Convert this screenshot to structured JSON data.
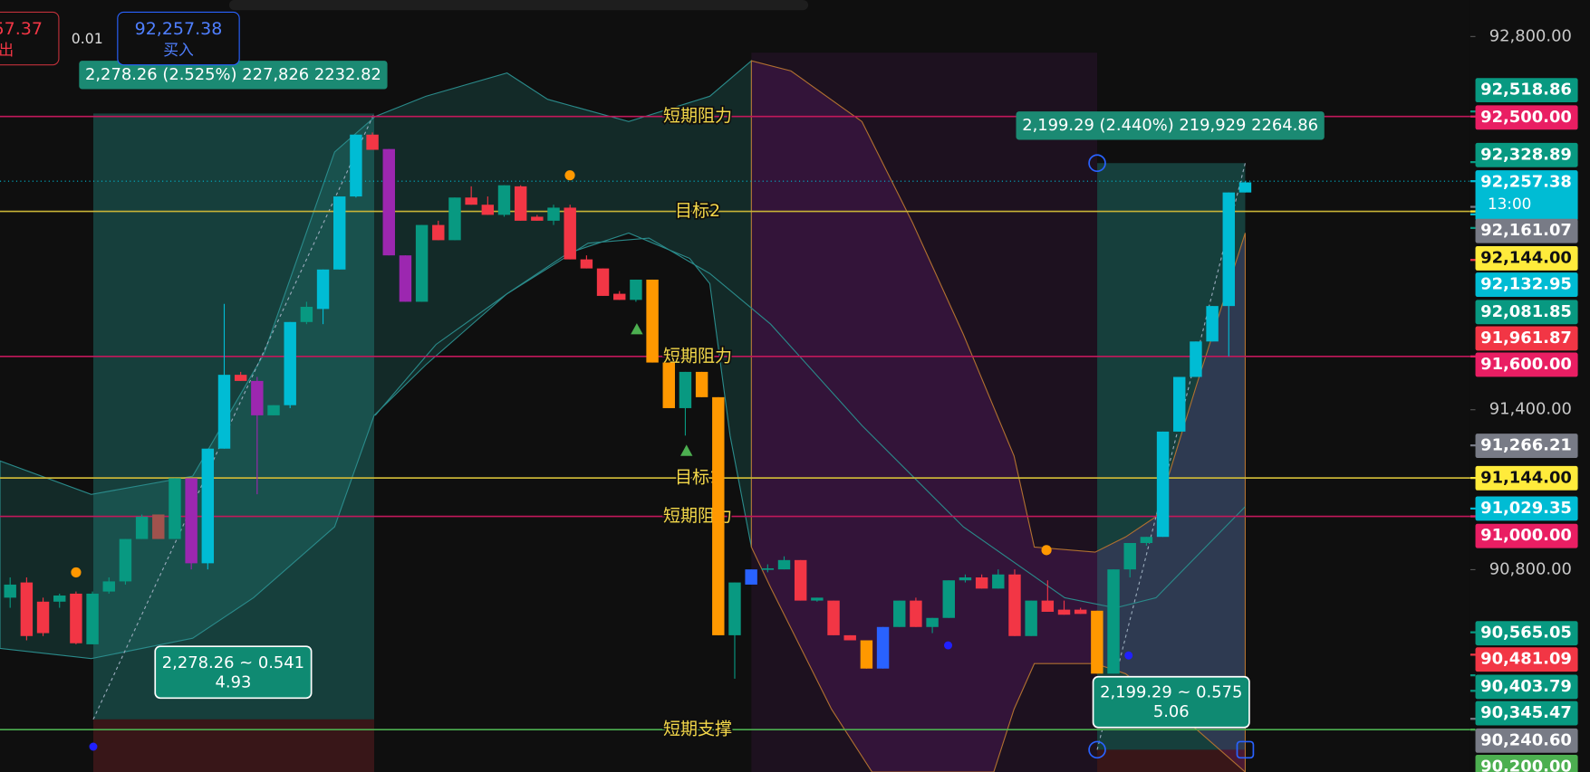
{
  "order_panel": {
    "sell_price": "57.37",
    "sell_label": "出",
    "spread": "0.01",
    "buy_price": "92,257.38",
    "buy_label": "买入"
  },
  "price_scale": {
    "ylim": [
      90041,
      92937
    ],
    "ticks": [
      {
        "value": 92800,
        "label": "92,800.00"
      },
      {
        "value": 91400,
        "label": "91,400.00"
      },
      {
        "value": 90800,
        "label": "90,800.00"
      }
    ]
  },
  "levels": [
    {
      "label": "短期阻力",
      "price": 92500,
      "color": "#c2185b"
    },
    {
      "label": "目标2",
      "price": 92144,
      "color": "#c9b437"
    },
    {
      "label": "短期阻力",
      "price": 91600,
      "color": "#c2185b"
    },
    {
      "label": "目标1",
      "price": 91144,
      "color": "#c9b437"
    },
    {
      "label": "短期阻力",
      "price": 91000,
      "color": "#c2185b"
    },
    {
      "label": "短期支撑",
      "price": 90200,
      "color": "#4caf50"
    }
  ],
  "badges": [
    {
      "value": 92518.86,
      "label": "92,518.86",
      "color": "#089981"
    },
    {
      "value": 92500,
      "label": "92,500.00",
      "color": "#e91e63"
    },
    {
      "value": 92328.89,
      "label": "92,328.89",
      "color": "#089981"
    },
    {
      "value": 92257.38,
      "label": "92,257.38",
      "color": "#00bcd4",
      "sub": "13:00"
    },
    {
      "value": 92161.07,
      "label": "92,161.07",
      "color": "#787b86"
    },
    {
      "value": 92144,
      "label": "92,144.00",
      "color": "#ffeb3b"
    },
    {
      "value": 92132.95,
      "label": "92,132.95",
      "color": "#00bcd4"
    },
    {
      "value": 92081.85,
      "label": "92,081.85",
      "color": "#089981"
    },
    {
      "value": 91961.87,
      "label": "91,961.87",
      "color": "#f23645"
    },
    {
      "value": 91600,
      "label": "91,600.00",
      "color": "#e91e63"
    },
    {
      "value": 91266.21,
      "label": "91,266.21",
      "color": "#787b86"
    },
    {
      "value": 91144,
      "label": "91,144.00",
      "color": "#ffeb3b"
    },
    {
      "value": 91029.35,
      "label": "91,029.35",
      "color": "#00bcd4"
    },
    {
      "value": 91000,
      "label": "91,000.00",
      "color": "#e91e63"
    },
    {
      "value": 90565.05,
      "label": "90,565.05",
      "color": "#089981"
    },
    {
      "value": 90481.09,
      "label": "90,481.09",
      "color": "#f23645"
    },
    {
      "value": 90403.79,
      "label": "90,403.79",
      "color": "#089981"
    },
    {
      "value": 90345.47,
      "label": "90,345.47",
      "color": "#089981"
    },
    {
      "value": 90240.6,
      "label": "90,240.60",
      "color": "#787b86"
    },
    {
      "value": 90200,
      "label": "90,200.00",
      "color": "#4caf50"
    }
  ],
  "measures": [
    {
      "header": "2,278.26 (2.525%) 227,826 2232.82",
      "line1": "2,278.26 ~ 0.541",
      "line2": "4.93"
    },
    {
      "header": "2,199.29 (2.440%) 219,929 2264.86",
      "line1": "2,199.29 ~ 0.575",
      "line2": "5.06"
    }
  ],
  "candles": [
    [
      90695,
      90771,
      90657,
      90744
    ],
    [
      90752,
      90771,
      90535,
      90551
    ],
    [
      90680,
      90695,
      90551,
      90562
    ],
    [
      90680,
      90710,
      90657,
      90703
    ],
    [
      90710,
      90718,
      90520,
      90524
    ],
    [
      90520,
      90718,
      90520,
      90710
    ],
    [
      90718,
      90771,
      90710,
      90756
    ],
    [
      90756,
      90915,
      90744,
      90915
    ],
    [
      90915,
      91007,
      90915,
      90999
    ],
    [
      91007,
      91007,
      90915,
      90915
    ],
    [
      90915,
      91143,
      90915,
      91143
    ],
    [
      90824,
      91143,
      90801,
      91143
    ],
    [
      90824,
      91254,
      90801,
      91254
    ],
    [
      91254,
      91797,
      91254,
      91531
    ],
    [
      91531,
      91542,
      91508,
      91508
    ],
    [
      91508,
      91523,
      91083,
      91379
    ],
    [
      91379,
      91417,
      91379,
      91417
    ],
    [
      91417,
      91729,
      91406,
      91729
    ],
    [
      91729,
      91805,
      91721,
      91786
    ],
    [
      91778,
      91926,
      91721,
      91926
    ],
    [
      91926,
      92200,
      91926,
      92200
    ],
    [
      92200,
      92432,
      92196,
      92432
    ],
    [
      92432,
      92440,
      92375,
      92375
    ],
    [
      92378,
      92378,
      91979,
      91979
    ],
    [
      91979,
      91979,
      91805,
      91805
    ],
    [
      91805,
      92093,
      91805,
      92093
    ],
    [
      92093,
      92109,
      92036,
      92036
    ],
    [
      92036,
      92196,
      92036,
      92196
    ],
    [
      92196,
      92238,
      92169,
      92169
    ],
    [
      92169,
      92200,
      92131,
      92131
    ],
    [
      92131,
      92242,
      92124,
      92242
    ],
    [
      92238,
      92242,
      92109,
      92109
    ],
    [
      92124,
      92131,
      92109,
      92109
    ],
    [
      92109,
      92169,
      92093,
      92158
    ],
    [
      92158,
      92169,
      91964,
      91964
    ],
    [
      91964,
      91979,
      91930,
      91930
    ],
    [
      91930,
      91930,
      91827,
      91827
    ],
    [
      91835,
      91845,
      91812,
      91812
    ],
    [
      91812,
      91888,
      91805,
      91888
    ],
    [
      91888,
      91888,
      91577,
      91577
    ],
    [
      91577,
      91577,
      91406,
      91406
    ],
    [
      91406,
      91542,
      91303,
      91542
    ],
    [
      91542,
      91542,
      91447,
      91447
    ],
    [
      91447,
      91447,
      90554,
      90554
    ],
    [
      90554,
      90752,
      90391,
      90752
    ],
    [
      90744,
      90801,
      90744,
      90801
    ],
    [
      90801,
      90820,
      90790,
      90805
    ],
    [
      90801,
      90850,
      90801,
      90836
    ],
    [
      90836,
      90836,
      90684,
      90684
    ],
    [
      90684,
      90695,
      90680,
      90695
    ],
    [
      90684,
      90684,
      90554,
      90554
    ],
    [
      90554,
      90554,
      90535,
      90535
    ],
    [
      90535,
      90535,
      90429,
      90429
    ],
    [
      90429,
      90585,
      90429,
      90585
    ],
    [
      90585,
      90684,
      90585,
      90684
    ],
    [
      90684,
      90695,
      90585,
      90585
    ],
    [
      90585,
      90619,
      90562,
      90619
    ],
    [
      90619,
      90760,
      90619,
      90760
    ],
    [
      90760,
      90782,
      90752,
      90771
    ],
    [
      90771,
      90782,
      90729,
      90729
    ],
    [
      90729,
      90801,
      90729,
      90782
    ],
    [
      90782,
      90801,
      90551,
      90551
    ],
    [
      90551,
      90684,
      90551,
      90684
    ],
    [
      90684,
      90760,
      90642,
      90642
    ],
    [
      90650,
      90684,
      90631,
      90631
    ],
    [
      90650,
      90657,
      90634,
      90634
    ],
    [
      90646,
      90646,
      90410,
      90410
    ],
    [
      90410,
      90801,
      90410,
      90801
    ],
    [
      90801,
      90900,
      90771,
      90900
    ],
    [
      90900,
      90923,
      90890,
      90923
    ],
    [
      90923,
      91318,
      90923,
      91318
    ],
    [
      91318,
      91523,
      91318,
      91523
    ],
    [
      91523,
      91656,
      91523,
      91656
    ],
    [
      91656,
      91789,
      91656,
      91789
    ],
    [
      91789,
      92215,
      91600,
      92215
    ],
    [
      92215,
      92257,
      92215,
      92253
    ]
  ],
  "candle_colors": [
    "#089981",
    "#f23645",
    "#f23645",
    "#089981",
    "#f23645",
    "#089981",
    "#089981",
    "#089981",
    "#089981",
    "#a0524d",
    "#089981",
    "#9c27b0",
    "#00bcd4",
    "#00bcd4",
    "#f23645",
    "#9c27b0",
    "#089981",
    "#00bcd4",
    "#089981",
    "#00bcd4",
    "#00bcd4",
    "#00bcd4",
    "#f23645",
    "#9c27b0",
    "#9c27b0",
    "#089981",
    "#f23645",
    "#089981",
    "#f23645",
    "#f23645",
    "#089981",
    "#f23645",
    "#f23645",
    "#089981",
    "#f23645",
    "#f23645",
    "#f23645",
    "#f23645",
    "#089981",
    "#ff9800",
    "#ff9800",
    "#089981",
    "#ff9800",
    "#ff9800",
    "#089981",
    "#2962ff",
    "#089981",
    "#089981",
    "#f23645",
    "#089981",
    "#f23645",
    "#f23645",
    "#ff9800",
    "#2962ff",
    "#089981",
    "#f23645",
    "#089981",
    "#089981",
    "#089981",
    "#f23645",
    "#089981",
    "#f23645",
    "#089981",
    "#f23645",
    "#f23645",
    "#f23645",
    "#ff9800",
    "#089981",
    "#089981",
    "#089981",
    "#00bcd4",
    "#00bcd4",
    "#00bcd4",
    "#00bcd4",
    "#00bcd4",
    "#00bcd4"
  ]
}
